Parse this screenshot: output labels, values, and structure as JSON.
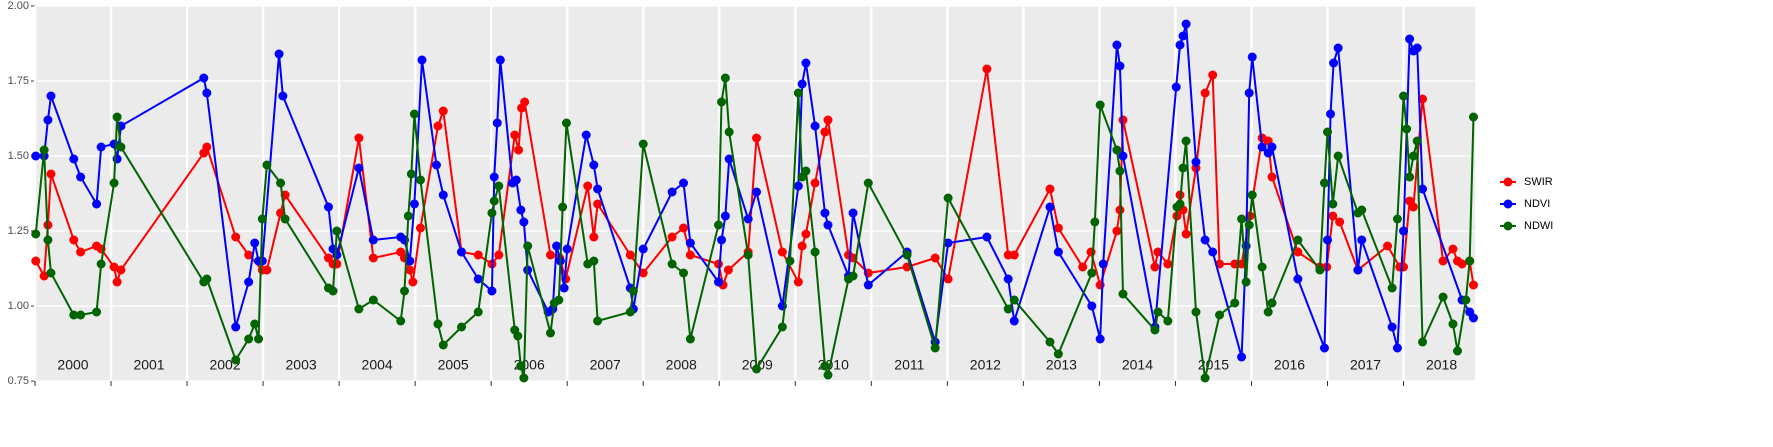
{
  "chart_data": {
    "type": "line",
    "xlim": [
      2000,
      2018.94
    ],
    "xticks": [
      {
        "value": 2000,
        "label": "2000"
      },
      {
        "value": 2001,
        "label": "2001"
      },
      {
        "value": 2002,
        "label": "2002"
      },
      {
        "value": 2003,
        "label": "2003"
      },
      {
        "value": 2004,
        "label": "2004"
      },
      {
        "value": 2005,
        "label": "2005"
      },
      {
        "value": 2006,
        "label": "2006"
      },
      {
        "value": 2007,
        "label": "2007"
      },
      {
        "value": 2008,
        "label": "2008"
      },
      {
        "value": 2009,
        "label": "2009"
      },
      {
        "value": 2010,
        "label": "2010"
      },
      {
        "value": 2011,
        "label": "2011"
      },
      {
        "value": 2012,
        "label": "2012"
      },
      {
        "value": 2013,
        "label": "2013"
      },
      {
        "value": 2014,
        "label": "2014"
      },
      {
        "value": 2015,
        "label": "2015"
      },
      {
        "value": 2016,
        "label": "2016"
      },
      {
        "value": 2017,
        "label": "2017"
      },
      {
        "value": 2018,
        "label": "2018"
      }
    ],
    "ylim": [
      0.75,
      2.0
    ],
    "yticks": [
      {
        "value": 0.75,
        "label": "0.75"
      },
      {
        "value": 1,
        "label": "1.00"
      },
      {
        "value": 1.25,
        "label": "1.25"
      },
      {
        "value": 1.5,
        "label": "1.50"
      },
      {
        "value": 1.75,
        "label": "1.75"
      },
      {
        "value": 2,
        "label": "2.00"
      }
    ],
    "grid": true,
    "legend": "right",
    "series": [
      {
        "name": "SWIR",
        "color": "#ff0000",
        "x": [
          2000.01,
          2000.12,
          2000.17,
          2000.21,
          2000.51,
          2000.6,
          2000.81,
          2000.87,
          2001.04,
          2001.08,
          2001.13,
          2002.22,
          2002.26,
          2002.64,
          2002.81,
          2002.99,
          2003.05,
          2003.23,
          2003.29,
          2003.86,
          2003.92,
          2003.97,
          2004.26,
          2004.45,
          2004.81,
          2004.86,
          2004.93,
          2004.97,
          2005.07,
          2005.3,
          2005.37,
          2005.61,
          2005.83,
          2006.01,
          2006.1,
          2006.31,
          2006.36,
          2006.4,
          2006.44,
          2006.78,
          2006.9,
          2006.98,
          2007.27,
          2007.35,
          2007.4,
          2007.83,
          2008.0,
          2008.38,
          2008.53,
          2008.62,
          2008.99,
          2009.05,
          2009.12,
          2009.38,
          2009.49,
          2009.83,
          2010.04,
          2010.09,
          2010.14,
          2010.26,
          2010.39,
          2010.43,
          2010.7,
          2010.76,
          2010.96,
          2011.47,
          2011.84,
          2012.01,
          2012.52,
          2012.8,
          2012.88,
          2013.35,
          2013.46,
          2013.78,
          2013.89,
          2014.01,
          2014.23,
          2014.27,
          2014.31,
          2014.73,
          2014.77,
          2014.9,
          2015.02,
          2015.06,
          2015.1,
          2015.14,
          2015.27,
          2015.39,
          2015.49,
          2015.58,
          2015.78,
          2015.87,
          2015.98,
          2016.14,
          2016.22,
          2016.27,
          2016.61,
          2016.9,
          2016.99,
          2017.07,
          2017.16,
          2017.4,
          2017.79,
          2017.95,
          2018.0,
          2018.08,
          2018.13,
          2018.25,
          2018.52,
          2018.65,
          2018.71,
          2018.77,
          2018.87,
          2018.92
        ],
        "values": [
          1.15,
          1.1,
          1.27,
          1.44,
          1.22,
          1.18,
          1.2,
          1.19,
          1.13,
          1.08,
          1.12,
          1.51,
          1.53,
          1.23,
          1.17,
          1.12,
          1.12,
          1.31,
          1.37,
          1.16,
          1.14,
          1.14,
          1.56,
          1.16,
          1.18,
          1.16,
          1.12,
          1.08,
          1.26,
          1.6,
          1.65,
          1.18,
          1.17,
          1.14,
          1.17,
          1.57,
          1.52,
          1.66,
          1.68,
          1.17,
          1.16,
          1.09,
          1.4,
          1.23,
          1.34,
          1.17,
          1.11,
          1.23,
          1.26,
          1.17,
          1.14,
          1.07,
          1.12,
          1.18,
          1.56,
          1.18,
          1.08,
          1.2,
          1.24,
          1.41,
          1.58,
          1.62,
          1.17,
          1.16,
          1.11,
          1.13,
          1.16,
          1.09,
          1.79,
          1.17,
          1.17,
          1.39,
          1.26,
          1.13,
          1.18,
          1.07,
          1.25,
          1.32,
          1.62,
          1.13,
          1.18,
          1.14,
          1.3,
          1.37,
          1.32,
          1.24,
          1.46,
          1.71,
          1.77,
          1.14,
          1.14,
          1.14,
          1.3,
          1.56,
          1.55,
          1.43,
          1.18,
          1.13,
          1.13,
          1.3,
          1.28,
          1.12,
          1.2,
          1.13,
          1.13,
          1.35,
          1.33,
          1.69,
          1.15,
          1.19,
          1.15,
          1.14,
          1.15,
          1.07
        ]
      },
      {
        "name": "NDVI",
        "color": "#0000ff",
        "x": [
          2000.01,
          2000.12,
          2000.17,
          2000.21,
          2000.51,
          2000.6,
          2000.81,
          2000.87,
          2001.04,
          2001.08,
          2001.13,
          2002.22,
          2002.26,
          2002.64,
          2002.81,
          2002.89,
          2002.94,
          2002.99,
          2003.21,
          2003.26,
          2003.86,
          2003.92,
          2003.97,
          2004.26,
          2004.45,
          2004.81,
          2004.86,
          2004.93,
          2004.99,
          2005.09,
          2005.28,
          2005.37,
          2005.61,
          2005.83,
          2006.01,
          2006.04,
          2006.08,
          2006.12,
          2006.28,
          2006.33,
          2006.39,
          2006.43,
          2006.48,
          2006.75,
          2006.81,
          2006.86,
          2006.91,
          2006.96,
          2007.0,
          2007.25,
          2007.35,
          2007.4,
          2007.83,
          2007.87,
          2008.0,
          2008.38,
          2008.53,
          2008.62,
          2008.99,
          2009.03,
          2009.08,
          2009.13,
          2009.38,
          2009.49,
          2009.83,
          2010.04,
          2010.09,
          2010.14,
          2010.26,
          2010.39,
          2010.43,
          2010.7,
          2010.76,
          2010.96,
          2011.47,
          2011.84,
          2012.01,
          2012.52,
          2012.8,
          2012.88,
          2013.35,
          2013.46,
          2013.9,
          2014.01,
          2014.05,
          2014.23,
          2014.27,
          2014.31,
          2014.73,
          2015.01,
          2015.06,
          2015.1,
          2015.14,
          2015.27,
          2015.39,
          2015.49,
          2015.87,
          2015.93,
          2015.97,
          2016.01,
          2016.14,
          2016.22,
          2016.27,
          2016.61,
          2016.96,
          2017.0,
          2017.04,
          2017.08,
          2017.14,
          2017.4,
          2017.45,
          2017.85,
          2017.92,
          2018.0,
          2018.08,
          2018.13,
          2018.18,
          2018.25,
          2018.77,
          2018.87,
          2018.92
        ],
        "values": [
          1.5,
          1.5,
          1.62,
          1.7,
          1.49,
          1.43,
          1.34,
          1.53,
          1.54,
          1.49,
          1.6,
          1.76,
          1.71,
          0.93,
          1.08,
          1.21,
          1.15,
          1.15,
          1.84,
          1.7,
          1.33,
          1.19,
          1.17,
          1.46,
          1.22,
          1.23,
          1.22,
          1.15,
          1.34,
          1.82,
          1.47,
          1.37,
          1.18,
          1.09,
          1.05,
          1.43,
          1.61,
          1.82,
          1.41,
          1.42,
          1.32,
          1.28,
          1.12,
          0.98,
          0.99,
          1.2,
          1.15,
          1.06,
          1.19,
          1.57,
          1.47,
          1.39,
          1.06,
          0.99,
          1.19,
          1.38,
          1.41,
          1.21,
          1.08,
          1.22,
          1.3,
          1.49,
          1.29,
          1.38,
          1.0,
          1.4,
          1.74,
          1.81,
          1.6,
          1.31,
          1.27,
          1.1,
          1.31,
          1.07,
          1.18,
          0.88,
          1.21,
          1.23,
          1.09,
          0.95,
          1.33,
          1.18,
          1.0,
          0.89,
          1.14,
          1.87,
          1.8,
          1.5,
          0.93,
          1.73,
          1.87,
          1.9,
          1.94,
          1.48,
          1.22,
          1.18,
          0.83,
          1.2,
          1.71,
          1.83,
          1.53,
          1.51,
          1.53,
          1.09,
          0.86,
          1.22,
          1.64,
          1.81,
          1.86,
          1.12,
          1.22,
          0.93,
          0.86,
          1.25,
          1.89,
          1.85,
          1.86,
          1.39,
          1.02,
          0.98,
          0.96
        ]
      },
      {
        "name": "NDWI",
        "color": "#006400",
        "x": [
          2000.01,
          2000.12,
          2000.17,
          2000.21,
          2000.51,
          2000.6,
          2000.81,
          2000.87,
          2001.04,
          2001.08,
          2001.13,
          2002.22,
          2002.26,
          2002.64,
          2002.81,
          2002.89,
          2002.94,
          2002.99,
          2003.05,
          2003.23,
          2003.29,
          2003.86,
          2003.92,
          2003.97,
          2004.26,
          2004.45,
          2004.81,
          2004.86,
          2004.91,
          2004.95,
          2004.99,
          2005.07,
          2005.3,
          2005.37,
          2005.61,
          2005.83,
          2006.01,
          2006.04,
          2006.1,
          2006.31,
          2006.35,
          2006.39,
          2006.43,
          2006.48,
          2006.78,
          2006.83,
          2006.89,
          2006.94,
          2006.99,
          2007.27,
          2007.35,
          2007.4,
          2007.83,
          2007.87,
          2008.0,
          2008.38,
          2008.53,
          2008.62,
          2008.99,
          2009.03,
          2009.08,
          2009.13,
          2009.38,
          2009.49,
          2009.83,
          2009.93,
          2010.04,
          2010.09,
          2010.14,
          2010.26,
          2010.39,
          2010.43,
          2010.7,
          2010.76,
          2010.96,
          2011.47,
          2011.84,
          2012.01,
          2012.8,
          2012.88,
          2013.35,
          2013.46,
          2013.9,
          2013.94,
          2014.01,
          2014.23,
          2014.27,
          2014.31,
          2014.73,
          2014.77,
          2014.9,
          2015.02,
          2015.06,
          2015.1,
          2015.14,
          2015.27,
          2015.39,
          2015.58,
          2015.78,
          2015.87,
          2015.93,
          2015.97,
          2016.01,
          2016.14,
          2016.22,
          2016.27,
          2016.61,
          2016.9,
          2016.96,
          2017.0,
          2017.07,
          2017.14,
          2017.4,
          2017.45,
          2017.85,
          2017.92,
          2018.0,
          2018.04,
          2018.08,
          2018.13,
          2018.18,
          2018.25,
          2018.52,
          2018.65,
          2018.71,
          2018.82,
          2018.87,
          2018.92
        ],
        "values": [
          1.24,
          1.52,
          1.22,
          1.11,
          0.97,
          0.97,
          0.98,
          1.14,
          1.41,
          1.63,
          1.53,
          1.08,
          1.09,
          0.82,
          0.89,
          0.94,
          0.89,
          1.29,
          1.47,
          1.41,
          1.29,
          1.06,
          1.05,
          1.25,
          0.99,
          1.02,
          0.95,
          1.05,
          1.3,
          1.44,
          1.64,
          1.42,
          0.94,
          0.87,
          0.93,
          0.98,
          1.31,
          1.35,
          1.4,
          0.92,
          0.9,
          0.8,
          0.76,
          1.2,
          0.91,
          1.01,
          1.02,
          1.33,
          1.61,
          1.14,
          1.15,
          0.95,
          0.98,
          1.05,
          1.54,
          1.14,
          1.11,
          0.89,
          1.27,
          1.68,
          1.76,
          1.58,
          1.17,
          0.79,
          0.93,
          1.15,
          1.71,
          1.43,
          1.45,
          1.18,
          0.8,
          0.77,
          1.09,
          1.1,
          1.41,
          1.17,
          0.86,
          1.36,
          0.99,
          1.02,
          0.88,
          0.84,
          1.11,
          1.28,
          1.67,
          1.52,
          1.45,
          1.04,
          0.92,
          0.98,
          0.95,
          1.33,
          1.34,
          1.46,
          1.55,
          0.98,
          0.76,
          0.97,
          1.01,
          1.29,
          1.08,
          1.27,
          1.37,
          1.13,
          0.98,
          1.01,
          1.22,
          1.12,
          1.41,
          1.58,
          1.34,
          1.5,
          1.31,
          1.32,
          1.06,
          1.29,
          1.7,
          1.59,
          1.43,
          1.5,
          1.55,
          0.88,
          1.03,
          0.94,
          0.85,
          1.02,
          1.15,
          1.63
        ]
      }
    ]
  }
}
